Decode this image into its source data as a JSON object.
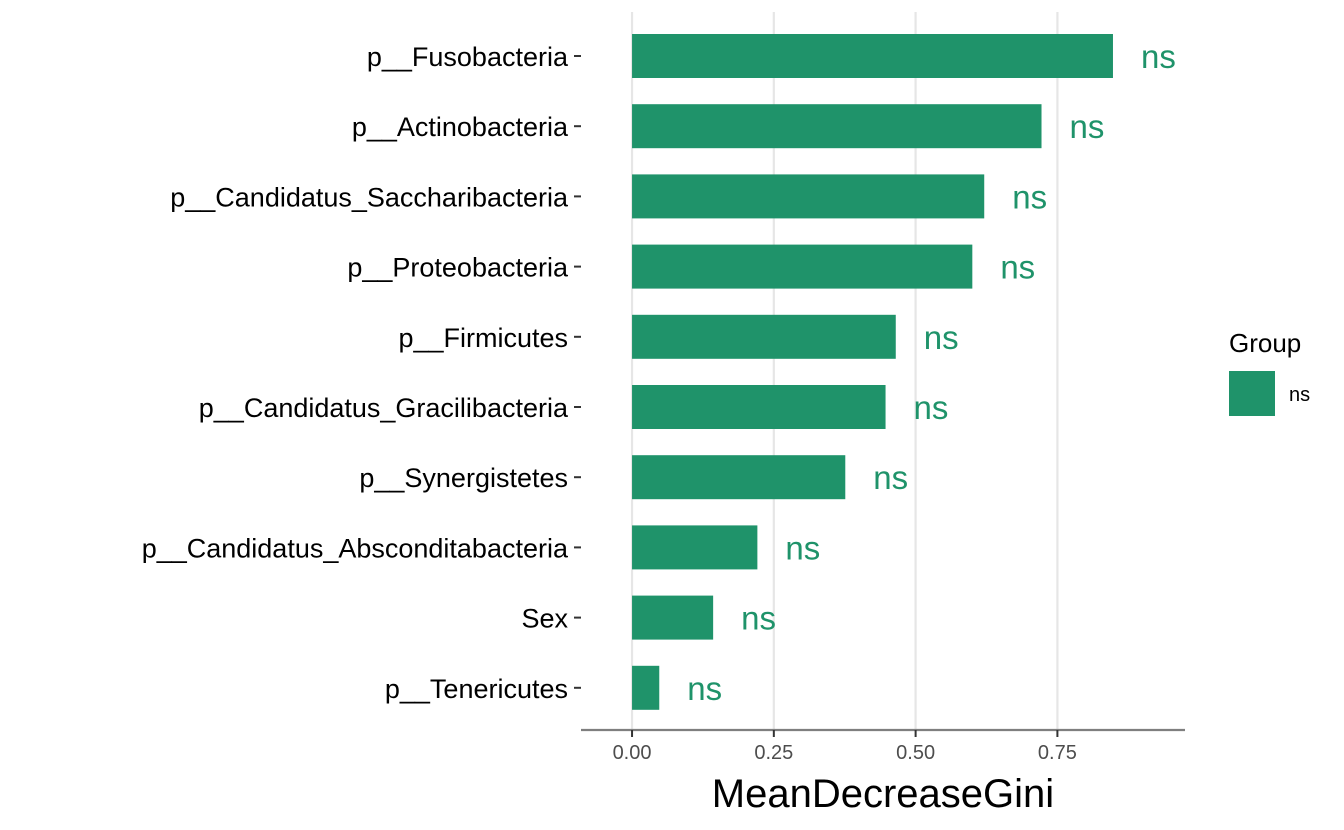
{
  "chart_data": {
    "type": "bar",
    "orientation": "horizontal",
    "categories": [
      "p__Fusobacteria",
      "p__Actinobacteria",
      "p__Candidatus_Saccharibacteria",
      "p__Proteobacteria",
      "p__Firmicutes",
      "p__Candidatus_Gracilibacteria",
      "p__Synergistetes",
      "p__Candidatus_Absconditabacteria",
      "Sex",
      "p__Tenericutes"
    ],
    "values": [
      0.848,
      0.722,
      0.621,
      0.6,
      0.465,
      0.447,
      0.376,
      0.221,
      0.143,
      0.048
    ],
    "data_labels": [
      "ns",
      "ns",
      "ns",
      "ns",
      "ns",
      "ns",
      "ns",
      "ns",
      "ns",
      "ns"
    ],
    "xlabel": "MeanDecreaseGini",
    "ylabel": "",
    "xlim": [
      -0.09,
      0.975
    ],
    "x_ticks": [
      0,
      0.25,
      0.5,
      0.75
    ],
    "x_tick_labels": [
      "0.00",
      "0.25",
      "0.50",
      "0.75"
    ],
    "grid": "vertical-major",
    "bar_color": "#1f936a",
    "label_color": "#1f936a",
    "legend": {
      "title": "Group",
      "position": "right",
      "entries": [
        {
          "name": "ns",
          "color": "#1f936a"
        }
      ]
    }
  }
}
